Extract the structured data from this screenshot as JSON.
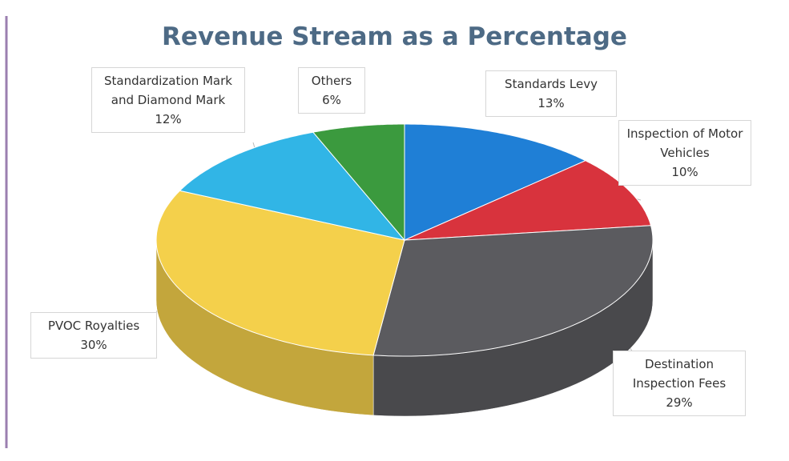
{
  "chart_data": {
    "type": "pie",
    "title": "Revenue Stream as a Percentage",
    "categories": [
      "Standards Levy",
      "Inspection of Motor Vehicles",
      "Destination Inspection Fees",
      "PVOC Royalties",
      "Standardization Mark and Diamond Mark",
      "Others"
    ],
    "values": [
      13,
      10,
      29,
      30,
      12,
      6
    ],
    "value_labels": [
      "13%",
      "10%",
      "29%",
      "30%",
      "12%",
      "6%"
    ],
    "colors": [
      "#1f7fd6",
      "#d8333d",
      "#5b5b5f",
      "#f4d04b",
      "#31b5e6",
      "#3b9a3e"
    ]
  }
}
